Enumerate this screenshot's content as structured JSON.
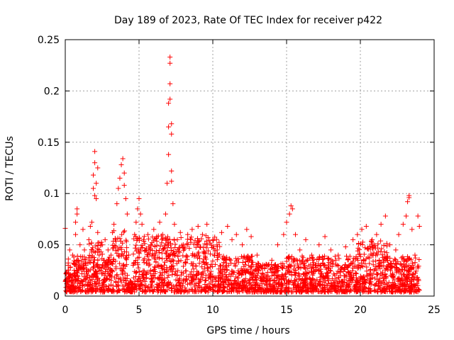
{
  "chart_data": {
    "type": "scatter",
    "title": "Day 189 of 2023, Rate Of TEC Index for receiver p422",
    "xlabel": "GPS time / hours",
    "ylabel": "ROTI / TECUs",
    "xlim": [
      0,
      25
    ],
    "ylim": [
      0,
      0.25
    ],
    "x_ticks": [
      0,
      5,
      10,
      15,
      20,
      25
    ],
    "x_tick_labels": [
      "0",
      "5",
      "10",
      "15",
      "20",
      "25"
    ],
    "y_ticks": [
      0,
      0.05,
      0.1,
      0.15,
      0.2,
      0.25
    ],
    "y_tick_labels": [
      "0",
      "0.05",
      "0.1",
      "0.15",
      "0.2",
      "0.25"
    ],
    "grid": true,
    "marker": "+",
    "color": "#ff0000",
    "series": [
      {
        "points": [
          [
            0.0,
            0.066
          ],
          [
            0.1,
            0.012
          ],
          [
            0.2,
            0.03
          ],
          [
            0.3,
            0.045
          ],
          [
            0.4,
            0.02
          ],
          [
            0.5,
            0.04
          ],
          [
            0.6,
            0.025
          ],
          [
            0.7,
            0.06
          ],
          [
            0.7,
            0.072
          ],
          [
            0.8,
            0.085
          ],
          [
            0.8,
            0.08
          ],
          [
            0.9,
            0.035
          ],
          [
            1.0,
            0.05
          ],
          [
            1.1,
            0.028
          ],
          [
            1.2,
            0.065
          ],
          [
            1.3,
            0.045
          ],
          [
            1.4,
            0.03
          ],
          [
            1.5,
            0.02
          ],
          [
            1.6,
            0.055
          ],
          [
            1.7,
            0.068
          ],
          [
            1.8,
            0.072
          ],
          [
            1.9,
            0.105
          ],
          [
            1.9,
            0.118
          ],
          [
            2.0,
            0.13
          ],
          [
            2.0,
            0.141
          ],
          [
            2.0,
            0.098
          ],
          [
            2.1,
            0.11
          ],
          [
            2.1,
            0.095
          ],
          [
            2.2,
            0.125
          ],
          [
            2.2,
            0.062
          ],
          [
            2.3,
            0.04
          ],
          [
            2.4,
            0.025
          ],
          [
            2.5,
            0.05
          ],
          [
            2.6,
            0.035
          ],
          [
            2.7,
            0.055
          ],
          [
            2.8,
            0.03
          ],
          [
            2.9,
            0.045
          ],
          [
            3.0,
            0.02
          ],
          [
            3.1,
            0.04
          ],
          [
            3.2,
            0.062
          ],
          [
            3.3,
            0.07
          ],
          [
            3.4,
            0.055
          ],
          [
            3.5,
            0.09
          ],
          [
            3.6,
            0.105
          ],
          [
            3.7,
            0.115
          ],
          [
            3.8,
            0.128
          ],
          [
            3.9,
            0.134
          ],
          [
            4.0,
            0.12
          ],
          [
            4.0,
            0.108
          ],
          [
            4.1,
            0.095
          ],
          [
            4.2,
            0.08
          ],
          [
            4.3,
            0.04
          ],
          [
            4.4,
            0.015
          ],
          [
            4.6,
            0.03
          ],
          [
            4.7,
            0.06
          ],
          [
            4.8,
            0.072
          ],
          [
            4.9,
            0.085
          ],
          [
            5.0,
            0.095
          ],
          [
            5.1,
            0.08
          ],
          [
            5.2,
            0.07
          ],
          [
            5.3,
            0.055
          ],
          [
            5.5,
            0.045
          ],
          [
            5.6,
            0.06
          ],
          [
            5.8,
            0.05
          ],
          [
            6.0,
            0.065
          ],
          [
            6.2,
            0.058
          ],
          [
            6.4,
            0.072
          ],
          [
            6.6,
            0.06
          ],
          [
            6.8,
            0.08
          ],
          [
            6.9,
            0.11
          ],
          [
            7.0,
            0.138
          ],
          [
            7.0,
            0.165
          ],
          [
            7.0,
            0.188
          ],
          [
            7.1,
            0.192
          ],
          [
            7.1,
            0.207
          ],
          [
            7.1,
            0.227
          ],
          [
            7.1,
            0.233
          ],
          [
            7.2,
            0.168
          ],
          [
            7.2,
            0.158
          ],
          [
            7.2,
            0.122
          ],
          [
            7.2,
            0.112
          ],
          [
            7.3,
            0.09
          ],
          [
            7.4,
            0.07
          ],
          [
            7.6,
            0.055
          ],
          [
            7.8,
            0.062
          ],
          [
            8.0,
            0.05
          ],
          [
            8.3,
            0.06
          ],
          [
            8.6,
            0.065
          ],
          [
            9.0,
            0.068
          ],
          [
            9.3,
            0.06
          ],
          [
            9.6,
            0.07
          ],
          [
            10.0,
            0.055
          ],
          [
            10.3,
            0.045
          ],
          [
            10.6,
            0.062
          ],
          [
            11.0,
            0.068
          ],
          [
            11.3,
            0.055
          ],
          [
            11.6,
            0.06
          ],
          [
            12.0,
            0.05
          ],
          [
            12.3,
            0.065
          ],
          [
            12.6,
            0.058
          ],
          [
            13.0,
            0.04
          ],
          [
            13.5,
            0.03
          ],
          [
            14.0,
            0.035
          ],
          [
            14.4,
            0.05
          ],
          [
            14.8,
            0.06
          ],
          [
            15.0,
            0.072
          ],
          [
            15.2,
            0.08
          ],
          [
            15.3,
            0.088
          ],
          [
            15.4,
            0.085
          ],
          [
            15.6,
            0.06
          ],
          [
            15.9,
            0.045
          ],
          [
            16.3,
            0.055
          ],
          [
            16.7,
            0.04
          ],
          [
            17.2,
            0.05
          ],
          [
            17.6,
            0.058
          ],
          [
            18.0,
            0.045
          ],
          [
            18.5,
            0.04
          ],
          [
            19.0,
            0.048
          ],
          [
            19.5,
            0.055
          ],
          [
            19.8,
            0.06
          ],
          [
            20.1,
            0.065
          ],
          [
            20.4,
            0.068
          ],
          [
            20.8,
            0.055
          ],
          [
            21.1,
            0.06
          ],
          [
            21.4,
            0.07
          ],
          [
            21.7,
            0.078
          ],
          [
            22.0,
            0.05
          ],
          [
            22.4,
            0.045
          ],
          [
            22.6,
            0.06
          ],
          [
            22.9,
            0.07
          ],
          [
            23.1,
            0.078
          ],
          [
            23.2,
            0.092
          ],
          [
            23.3,
            0.098
          ],
          [
            23.3,
            0.096
          ],
          [
            23.5,
            0.065
          ],
          [
            23.7,
            0.04
          ],
          [
            23.9,
            0.078
          ],
          [
            24.0,
            0.068
          ]
        ]
      }
    ]
  }
}
